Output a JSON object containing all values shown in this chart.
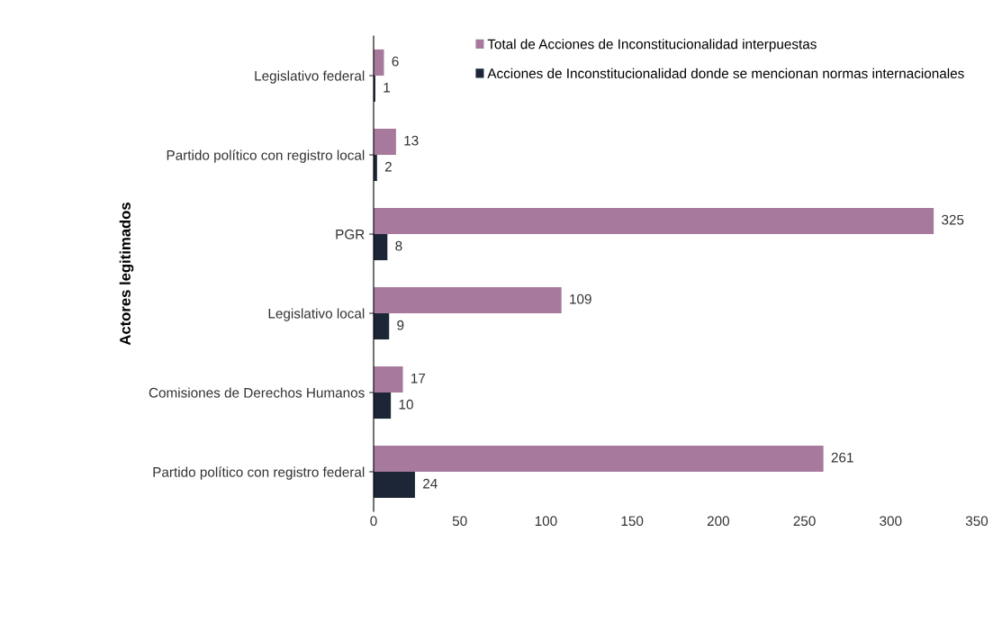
{
  "chart_data": {
    "type": "bar",
    "orientation": "horizontal",
    "ylabel": "Actores legitimados",
    "categories": [
      "Legislativo federal",
      "Partido político con registro local",
      "PGR",
      "Legislativo local",
      "Comisiones de Derechos Humanos",
      "Partido político con registro federal"
    ],
    "series": [
      {
        "name": "Total de Acciones de Inconstitucionalidad interpuestas",
        "color": "#a6799d",
        "values": [
          6,
          13,
          325,
          109,
          17,
          261
        ]
      },
      {
        "name": "Acciones de Inconstitucionalidad donde se mencionan normas internacionales",
        "color": "#1c2636",
        "values": [
          1,
          2,
          8,
          9,
          10,
          24
        ]
      }
    ],
    "xlim": [
      0,
      350
    ],
    "xticks": [
      0,
      50,
      100,
      150,
      200,
      250,
      300,
      350
    ],
    "data_labels": true,
    "legend": "top right",
    "grid": false
  }
}
